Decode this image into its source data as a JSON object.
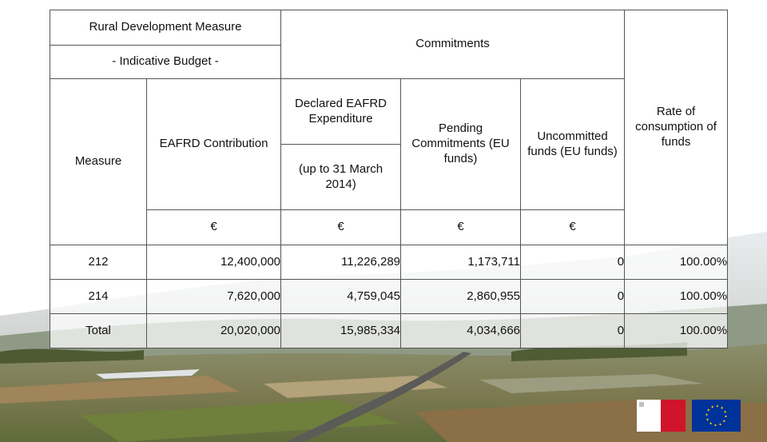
{
  "table": {
    "header": {
      "budget_title": "Rural Development Measure",
      "budget_subtitle": "- Indicative Budget -",
      "commitments": "Commitments",
      "rate": "Rate of consumption of funds",
      "measure": "Measure",
      "contribution": "EAFRD Contribution",
      "declared": "Declared EAFRD Expenditure",
      "declared_period": "(up to 31 March 2014)",
      "pending": "Pending Commitments (EU funds)",
      "uncommitted": "Uncommitted funds (EU funds)",
      "currency": [
        "€",
        "€",
        "€",
        "€"
      ]
    },
    "rows": [
      [
        "212",
        "12,400,000",
        "11,226,289",
        "1,173,711",
        "0",
        "100.00%"
      ],
      [
        "214",
        "7,620,000",
        "4,759,045",
        "2,860,955",
        "0",
        "100.00%"
      ],
      [
        "Total",
        "20,020,000",
        "15,985,334",
        "4,034,666",
        "0",
        "100.00%"
      ]
    ]
  }
}
